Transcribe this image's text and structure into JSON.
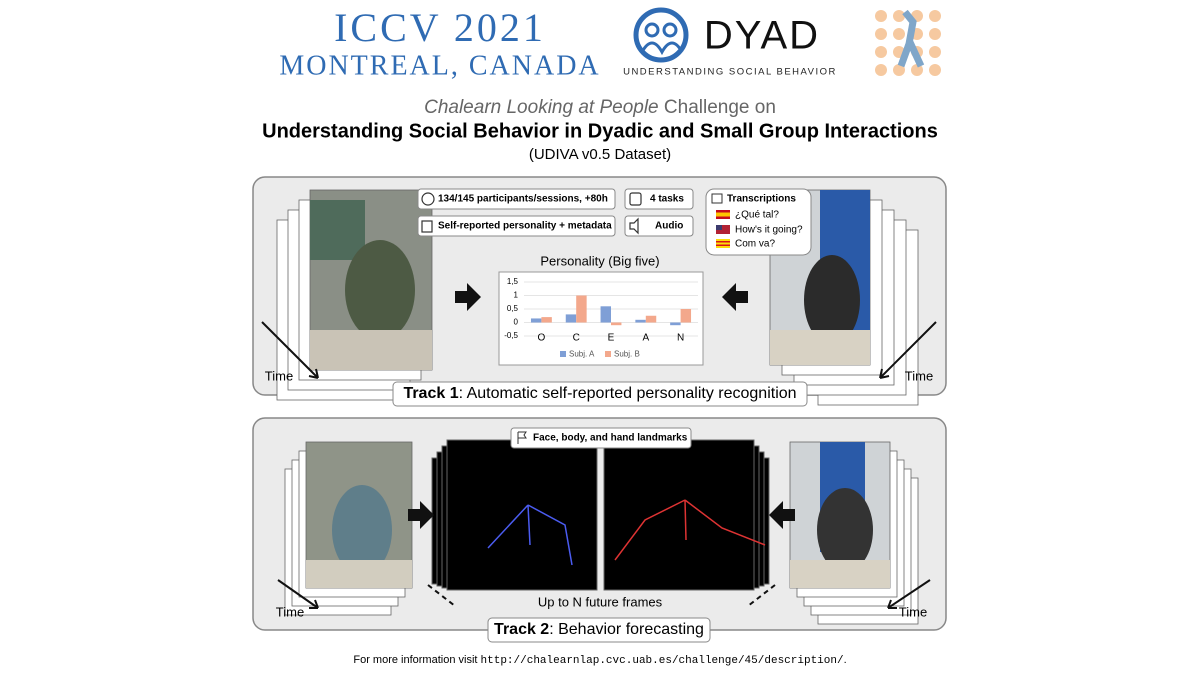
{
  "header": {
    "conference": "ICCV 2021",
    "location": "MONTREAL, CANADA",
    "logo_name": "DYAD",
    "logo_tagline": "UNDERSTANDING SOCIAL BEHAVIOR",
    "challenge_italic": "Chalearn Looking at People",
    "challenge_rest": " Challenge on",
    "title": "Understanding Social Behavior in Dyadic and Small Group Interactions",
    "dataset": "(UDIVA v0.5 Dataset)"
  },
  "track1": {
    "badges": [
      "134/145 participants/sessions, +80h",
      "4 tasks",
      "Self-reported personality + metadata",
      "Audio"
    ],
    "transcriptions": {
      "title": "Transcriptions",
      "lines": [
        "¿Qué tal?",
        "How's it going?",
        "Com va?"
      ]
    },
    "time_left": "Time",
    "time_right": "Time",
    "label_bold": "Track 1",
    "label_rest": ": Automatic self-reported personality recognition"
  },
  "chart_data": {
    "type": "bar",
    "title": "Personality (Big five)",
    "categories": [
      "O",
      "C",
      "E",
      "A",
      "N"
    ],
    "series": [
      {
        "name": "Subj. A",
        "color": "#7f9fd6",
        "values": [
          0.15,
          0.3,
          0.6,
          0.1,
          -0.1
        ]
      },
      {
        "name": "Subj. B",
        "color": "#f3a88c",
        "values": [
          0.2,
          1.0,
          -0.1,
          0.25,
          0.5
        ]
      }
    ],
    "ylim": [
      -0.5,
      1.5
    ],
    "yticks": [
      {
        "value": 1.5,
        "label": "1,5"
      },
      1,
      {
        "value": 0.5,
        "label": "0,5"
      },
      0,
      {
        "value": -0.5,
        "label": "-0,5"
      }
    ],
    "grid": true
  },
  "track2": {
    "badge": "Face, body, and hand landmarks",
    "future": "Up to N future frames",
    "time_left": "Time",
    "time_right": "Time",
    "label_bold": "Track 2",
    "label_rest": ": Behavior forecasting"
  },
  "footer": {
    "text": "For more information visit ",
    "url": "http://chalearnlap.cvc.uab.es/challenge/45/description/",
    "end": "."
  }
}
